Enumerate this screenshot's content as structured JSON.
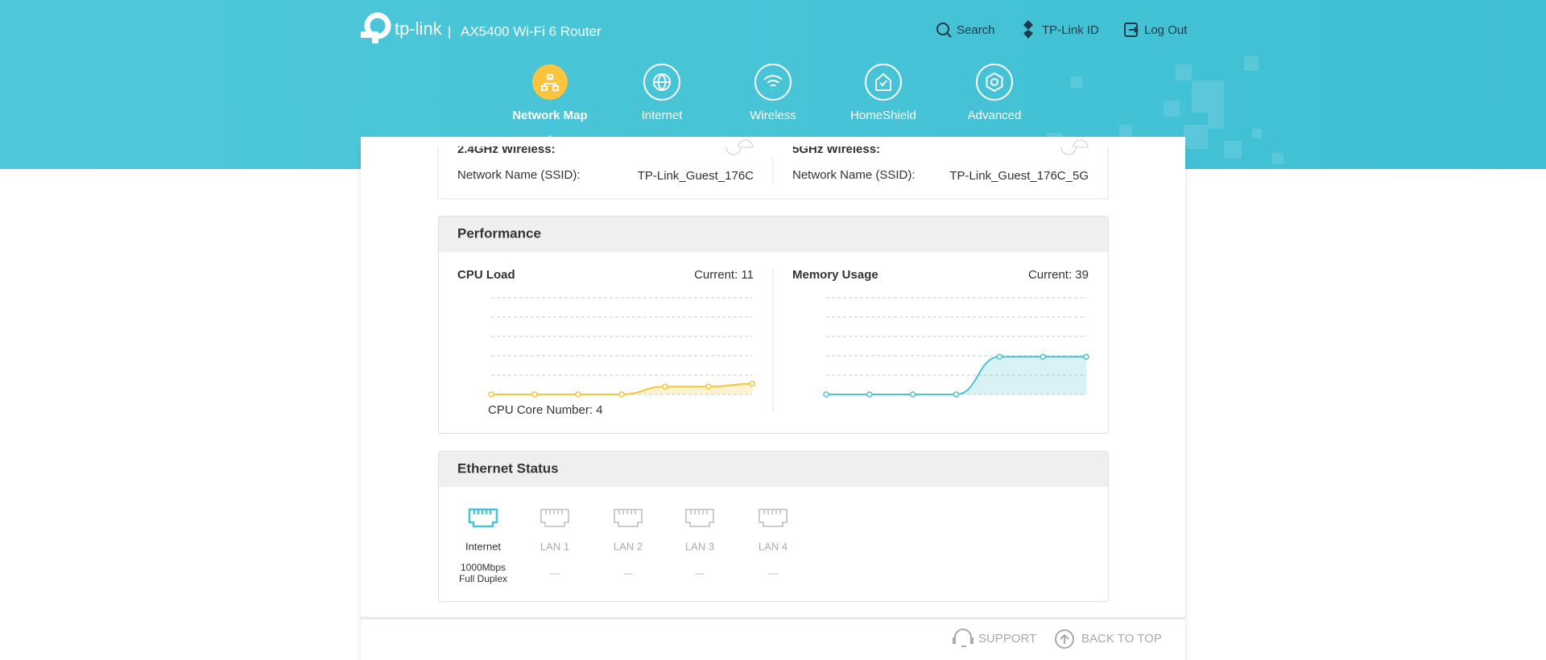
{
  "header": {
    "brand": "tp-link",
    "model": "AX5400 Wi-Fi 6 Router",
    "links": [
      "Search",
      "TP-Link ID",
      "Log Out"
    ]
  },
  "nav": [
    "Network Map",
    "Internet",
    "Wireless",
    "HomeShield",
    "Advanced"
  ],
  "guest": {
    "left": {
      "band": "2.4GHz Wireless:",
      "ssid_label": "Network Name (SSID):",
      "ssid": "TP-Link_Guest_176C"
    },
    "right": {
      "band": "5GHz Wireless:",
      "ssid_label": "Network Name (SSID):",
      "ssid": "TP-Link_Guest_176C_5G"
    }
  },
  "performance": {
    "title": "Performance"
  },
  "chart_data": [
    {
      "type": "line",
      "title": "CPU Load",
      "current": "Current: 11",
      "note": "CPU Core Number: 4",
      "categories": [
        null,
        null,
        null,
        null,
        null,
        null,
        null
      ],
      "series": [
        {
          "name": "CPU Load",
          "color": "#f5c533",
          "values": [
            0,
            0,
            0,
            0,
            8,
            8,
            11
          ]
        }
      ],
      "ylim": [
        0,
        100
      ],
      "yticks": [
        0,
        20,
        40,
        60,
        80,
        100
      ],
      "grid": true
    },
    {
      "type": "line",
      "title": "Memory Usage",
      "current": "Current: 39",
      "categories": [
        null,
        null,
        null,
        null,
        null,
        null,
        null
      ],
      "series": [
        {
          "name": "Memory Usage",
          "color": "#4cc3d4",
          "values": [
            0,
            0,
            0,
            0,
            39,
            39,
            39
          ]
        }
      ],
      "ylim": [
        0,
        100
      ],
      "yticks": [
        0,
        20,
        40,
        60,
        80,
        100
      ],
      "grid": true
    }
  ],
  "ethernet": {
    "title": "Ethernet Status",
    "ports": [
      {
        "name": "Internet",
        "status": "1000Mbps",
        "duplex": "Full Duplex"
      },
      {
        "name": "LAN 1",
        "status": "---"
      },
      {
        "name": "LAN 2",
        "status": "---"
      },
      {
        "name": "LAN 3",
        "status": "---"
      },
      {
        "name": "LAN 4",
        "status": "---"
      }
    ]
  },
  "footer": [
    "SUPPORT",
    "BACK TO TOP"
  ]
}
